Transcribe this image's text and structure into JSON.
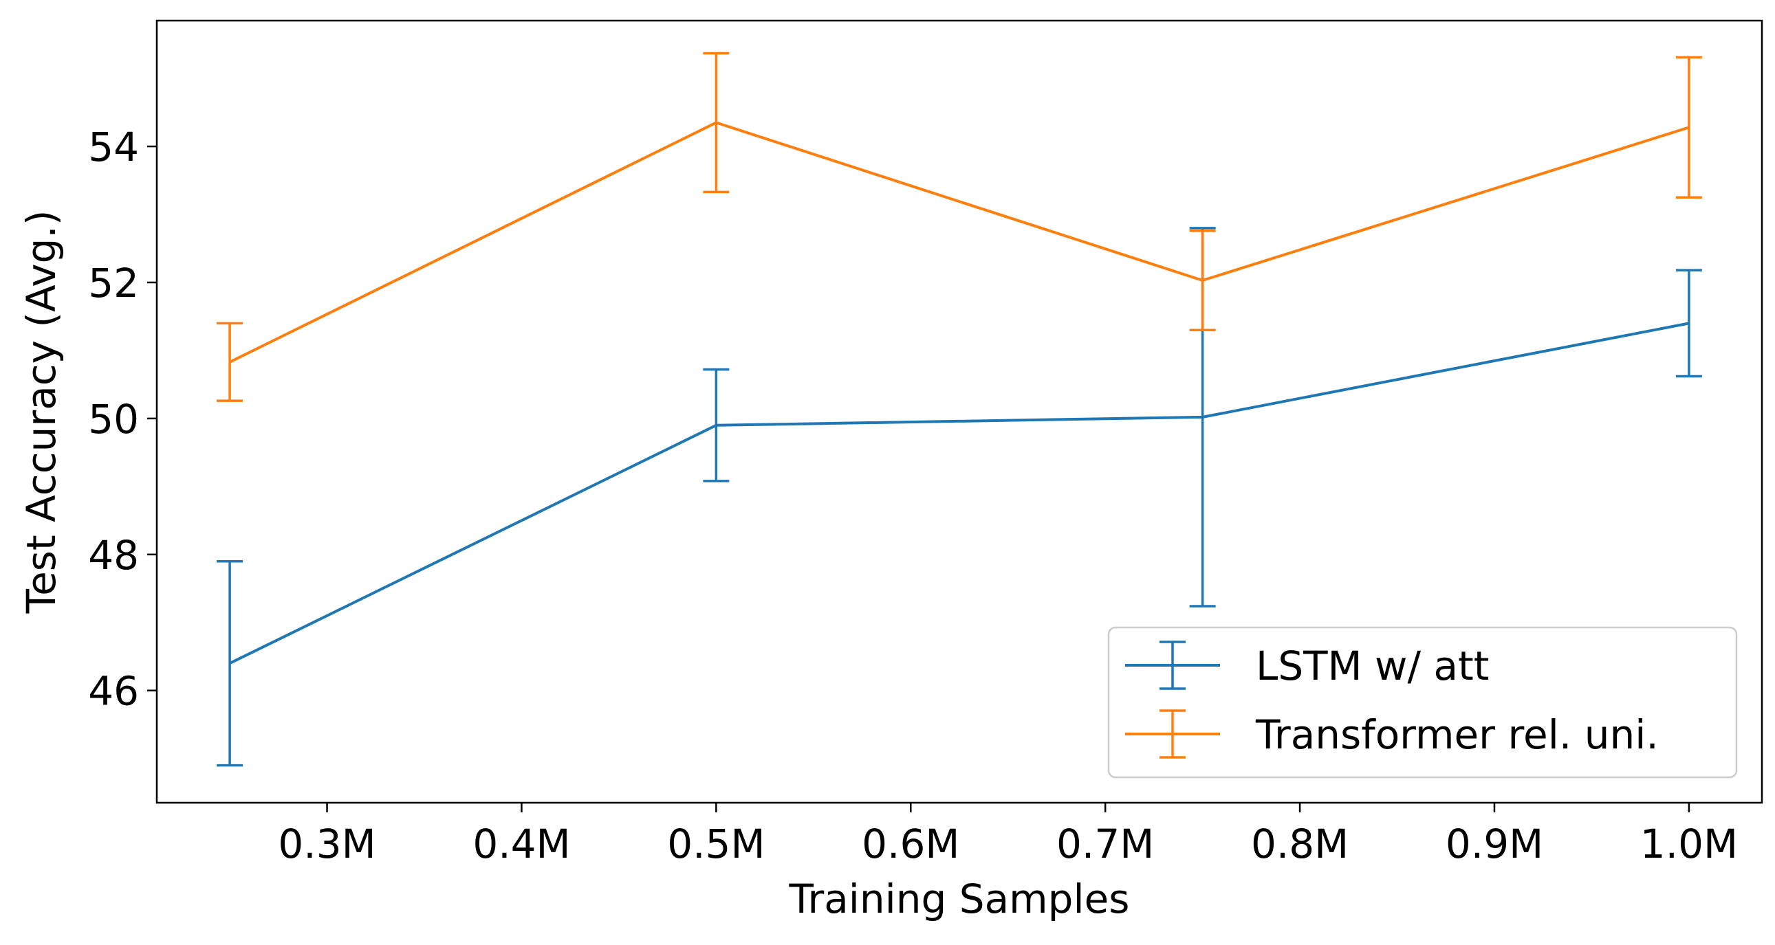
{
  "chart_data": {
    "type": "line",
    "title": "",
    "xlabel": "Training Samples",
    "ylabel": "Test Accuracy (Avg.)",
    "x": [
      0.25,
      0.5,
      0.75,
      1.0
    ],
    "x_unit": "M",
    "xlim": [
      0.2125,
      1.0375
    ],
    "ylim": [
      44.35,
      55.85
    ],
    "xticks": [
      0.3,
      0.4,
      0.5,
      0.6,
      0.7,
      0.8,
      0.9,
      1.0
    ],
    "xtick_labels": [
      "0.3M",
      "0.4M",
      "0.5M",
      "0.6M",
      "0.7M",
      "0.8M",
      "0.9M",
      "1.0M"
    ],
    "yticks": [
      46,
      48,
      50,
      52,
      54
    ],
    "ytick_labels": [
      "46",
      "48",
      "50",
      "52",
      "54"
    ],
    "grid": false,
    "legend_position": "bottom-right",
    "series": [
      {
        "name": "LSTM w/ att",
        "color": "#1f77b4",
        "values": [
          46.4,
          49.9,
          50.02,
          51.4
        ],
        "errors": [
          1.5,
          0.82,
          2.78,
          0.78
        ]
      },
      {
        "name": "Transformer rel. uni.",
        "color": "#ff7f0e",
        "values": [
          50.83,
          54.35,
          52.03,
          54.28
        ],
        "errors": [
          0.57,
          1.02,
          0.73,
          1.03
        ]
      }
    ]
  }
}
